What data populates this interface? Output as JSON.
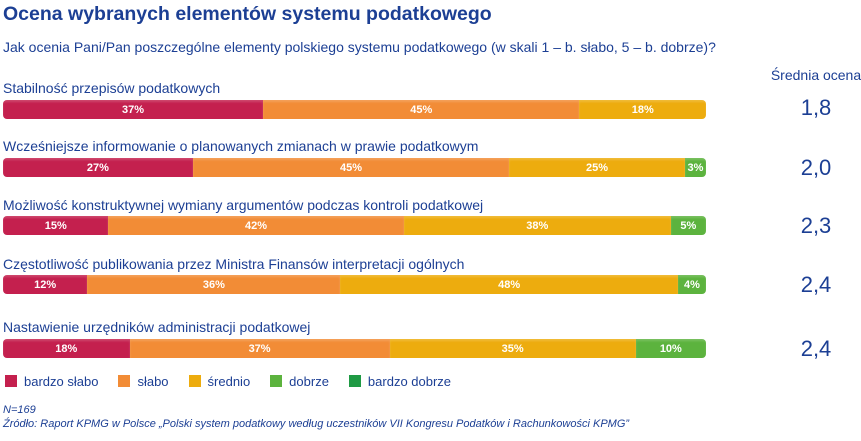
{
  "colors": {
    "title": "#1c3f94",
    "bardzo_slabo": "#c4204e",
    "slabo": "#f28c36",
    "srednio": "#edac0e",
    "dobrze": "#5cb33e",
    "bardzo_dobrze": "#1f9a44"
  },
  "chart_data": {
    "type": "bar",
    "orientation": "horizontal",
    "stacked": true,
    "title": "Ocena wybranych elementów systemu podatkowego",
    "subtitle": "Jak ocenia Pani/Pan poszczególne elementy polskiego systemu podatkowego (w skali 1 – b. słabo, 5 – b. dobrze)?",
    "average_header": "Średnia ocena",
    "legend_position": "bottom",
    "legend": [
      {
        "key": "bardzo_slabo",
        "label": "bardzo słabo"
      },
      {
        "key": "slabo",
        "label": "słabo"
      },
      {
        "key": "srednio",
        "label": "średnio"
      },
      {
        "key": "dobrze",
        "label": "dobrze"
      },
      {
        "key": "bardzo_dobrze",
        "label": "bardzo dobrze"
      }
    ],
    "rows": [
      {
        "label": "Stabilność przepisów podatkowych",
        "segments": [
          {
            "key": "bardzo_slabo",
            "value": 37,
            "text": "37%"
          },
          {
            "key": "slabo",
            "value": 45,
            "text": "45%"
          },
          {
            "key": "srednio",
            "value": 18,
            "text": "18%"
          }
        ],
        "average": "1,8"
      },
      {
        "label": "Wcześniejsze informowanie o planowanych zmianach w prawie podatkowym",
        "segments": [
          {
            "key": "bardzo_slabo",
            "value": 27,
            "text": "27%"
          },
          {
            "key": "slabo",
            "value": 45,
            "text": "45%"
          },
          {
            "key": "srednio",
            "value": 25,
            "text": "25%"
          },
          {
            "key": "dobrze",
            "value": 3,
            "text": "3%"
          }
        ],
        "average": "2,0"
      },
      {
        "label": "Możliwość konstruktywnej wymiany argumentów podczas kontroli podatkowej",
        "segments": [
          {
            "key": "bardzo_slabo",
            "value": 15,
            "text": "15%"
          },
          {
            "key": "slabo",
            "value": 42,
            "text": "42%"
          },
          {
            "key": "srednio",
            "value": 38,
            "text": "38%"
          },
          {
            "key": "dobrze",
            "value": 5,
            "text": "5%"
          }
        ],
        "average": "2,3"
      },
      {
        "label": "Częstotliwość publikowania przez Ministra Finansów interpretacji ogólnych",
        "segments": [
          {
            "key": "bardzo_slabo",
            "value": 12,
            "text": "12%"
          },
          {
            "key": "slabo",
            "value": 36,
            "text": "36%"
          },
          {
            "key": "srednio",
            "value": 48,
            "text": "48%"
          },
          {
            "key": "dobrze",
            "value": 4,
            "text": "4%"
          }
        ],
        "average": "2,4"
      },
      {
        "label": "Nastawienie urzędników administracji podatkowej",
        "segments": [
          {
            "key": "bardzo_slabo",
            "value": 18,
            "text": "18%"
          },
          {
            "key": "slabo",
            "value": 37,
            "text": "37%"
          },
          {
            "key": "srednio",
            "value": 35,
            "text": "35%"
          },
          {
            "key": "dobrze",
            "value": 10,
            "text": "10%"
          }
        ],
        "average": "2,4"
      }
    ]
  },
  "footer": {
    "n": "N=169",
    "source": "Źródło: Raport KPMG w Polsce „Polski system podatkowy według uczestników VII Kongresu Podatków i Rachunkowości KPMG”"
  }
}
